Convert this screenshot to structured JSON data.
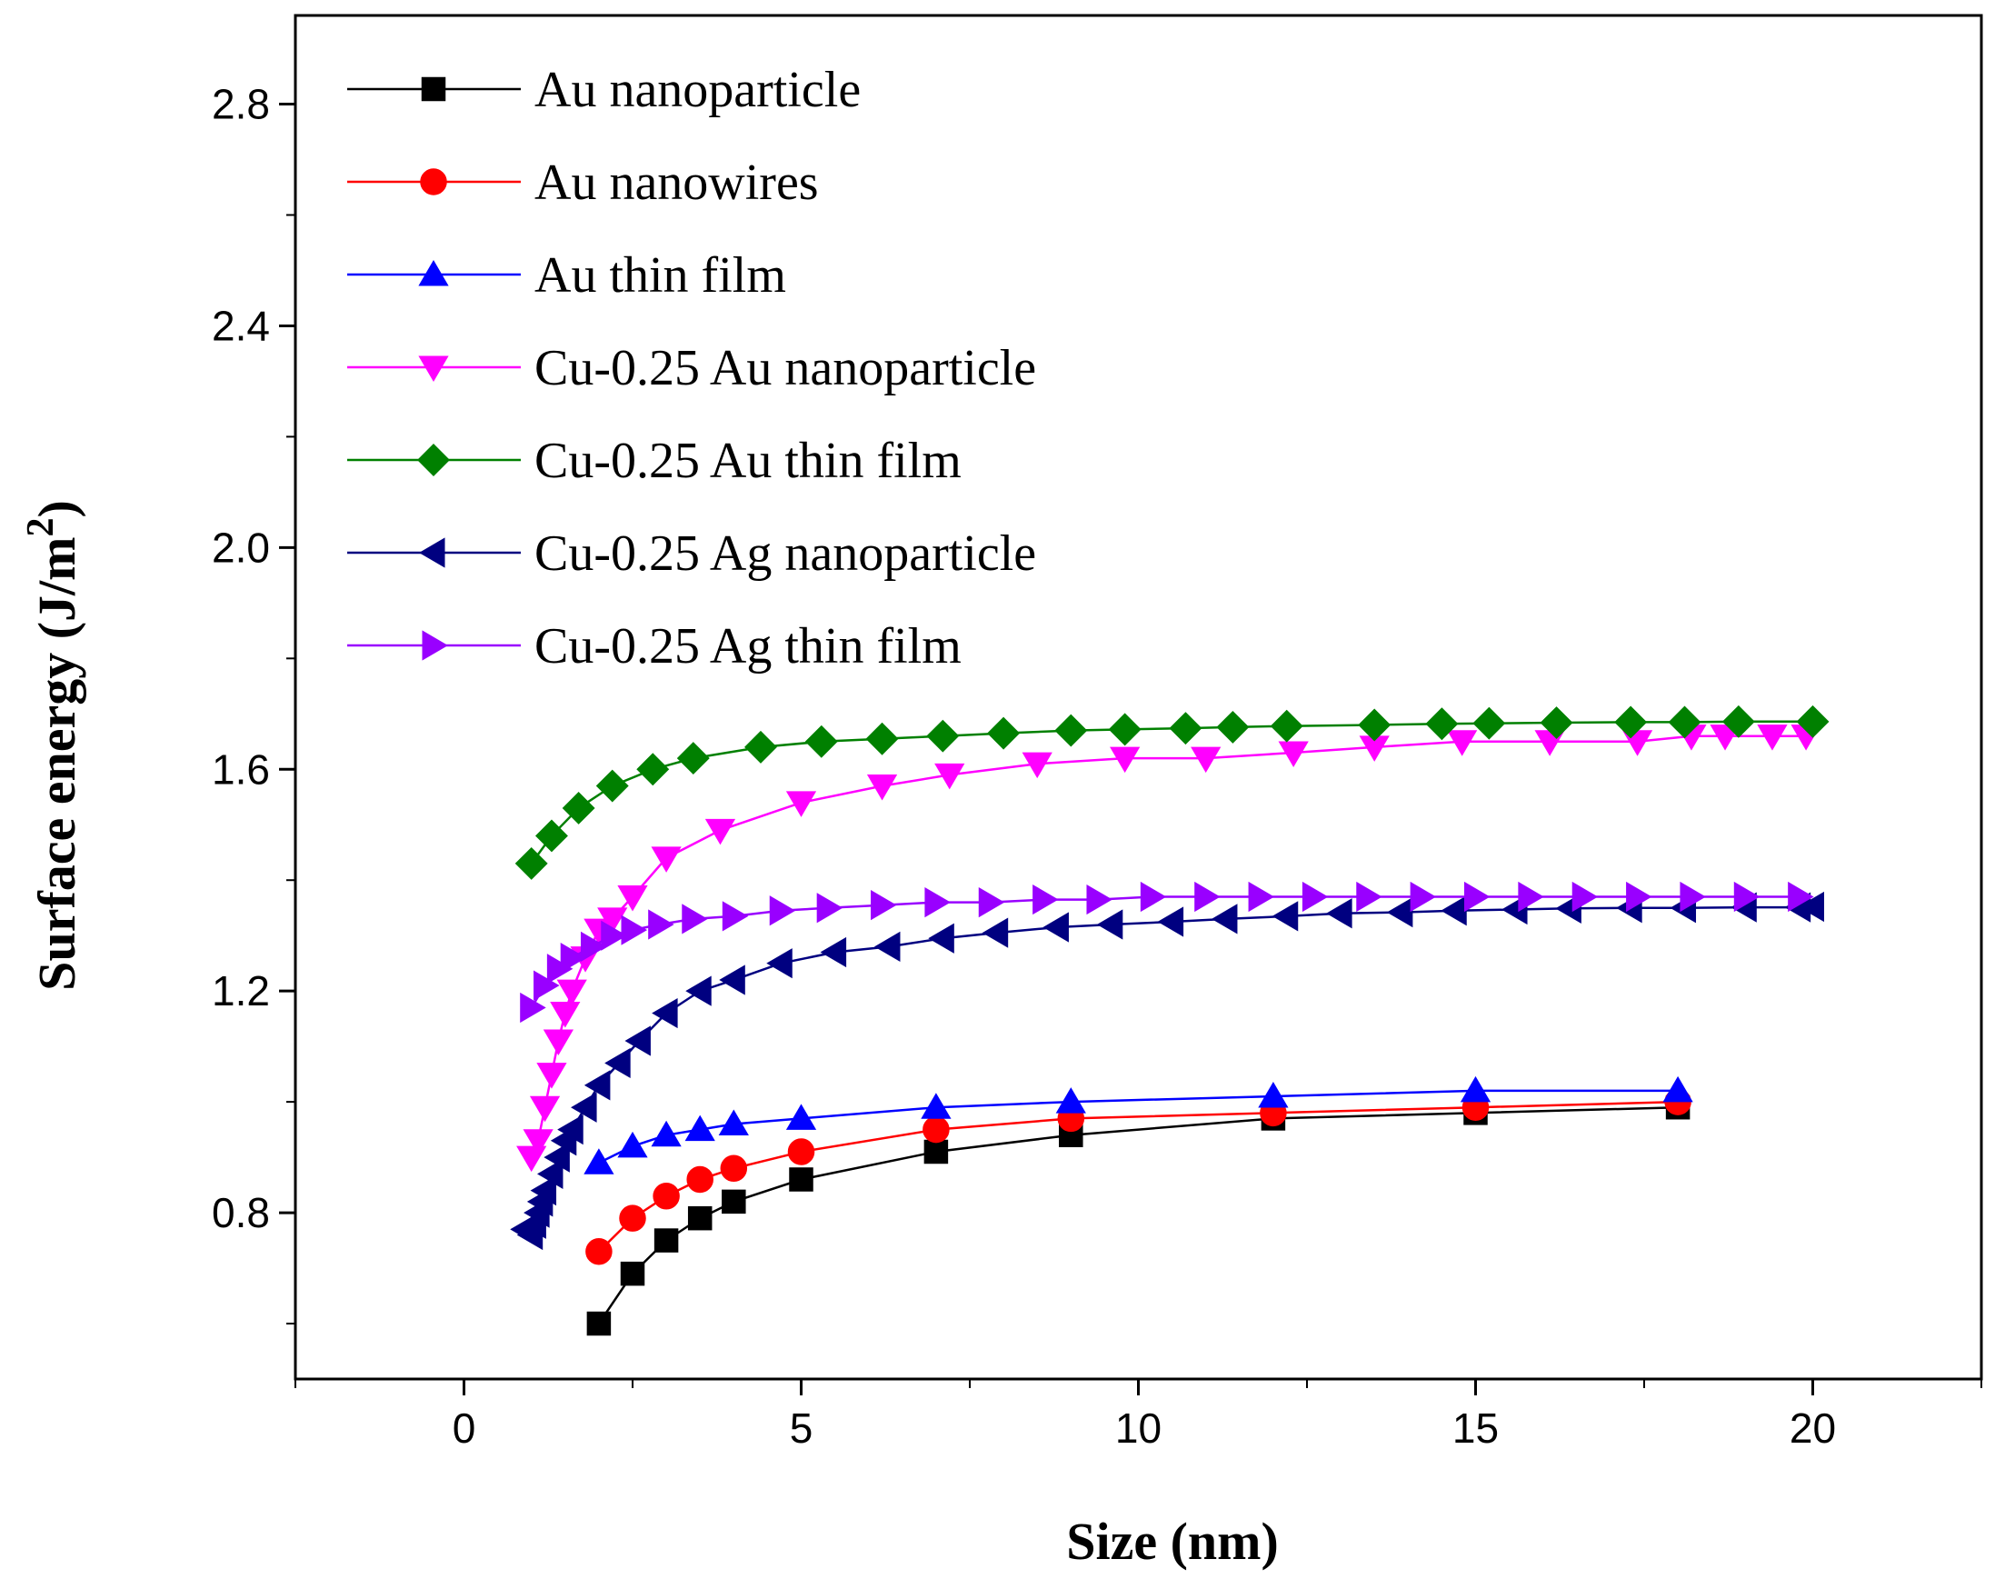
{
  "chart_data": {
    "type": "line",
    "title": "",
    "xlabel": "Size (nm)",
    "ylabel_main": "Surface energy (J/m",
    "ylabel_sup": "2",
    "ylabel_close": ")",
    "xlim": [
      -2.5,
      22.5
    ],
    "ylim": [
      0.5,
      2.96
    ],
    "xticks": [
      0,
      5,
      10,
      15,
      20
    ],
    "xtick_labels": [
      "0",
      "5",
      "10",
      "15",
      "20"
    ],
    "yticks": [
      0.8,
      1.2,
      1.6,
      2.0,
      2.4,
      2.8
    ],
    "ytick_labels": [
      "0.8",
      "1.2",
      "1.6",
      "2.0",
      "2.4",
      "2.8"
    ],
    "legend_position": "top-left",
    "series": [
      {
        "name": "Au nanoparticle",
        "color": "#000000",
        "marker": "square",
        "x": [
          2,
          2.5,
          3,
          3.5,
          4,
          5,
          7,
          9,
          12,
          15,
          18
        ],
        "y": [
          0.6,
          0.69,
          0.75,
          0.79,
          0.82,
          0.86,
          0.91,
          0.94,
          0.97,
          0.98,
          0.99
        ]
      },
      {
        "name": "Au nanowires",
        "color": "#ff0000",
        "marker": "circle",
        "x": [
          2,
          2.5,
          3,
          3.5,
          4,
          5,
          7,
          9,
          12,
          15,
          18
        ],
        "y": [
          0.73,
          0.79,
          0.83,
          0.86,
          0.88,
          0.91,
          0.95,
          0.97,
          0.98,
          0.99,
          1.0
        ]
      },
      {
        "name": "Au thin film",
        "color": "#0000ff",
        "marker": "triangle-up",
        "x": [
          2,
          2.5,
          3,
          3.5,
          4,
          5,
          7,
          9,
          12,
          15,
          18
        ],
        "y": [
          0.89,
          0.92,
          0.94,
          0.95,
          0.96,
          0.97,
          0.99,
          1.0,
          1.01,
          1.02,
          1.02
        ]
      },
      {
        "name": "Cu-0.25 Au nanoparticle",
        "color": "#ff00ff",
        "marker": "triangle-down",
        "x": [
          1.0,
          1.1,
          1.2,
          1.3,
          1.4,
          1.5,
          1.6,
          1.8,
          2.0,
          2.2,
          2.5,
          3.0,
          3.8,
          5.0,
          6.2,
          7.2,
          8.5,
          9.8,
          11.0,
          12.3,
          13.5,
          14.8,
          16.1,
          17.4,
          18.2,
          18.7,
          19.4,
          19.9
        ],
        "y": [
          0.9,
          0.93,
          0.99,
          1.05,
          1.11,
          1.16,
          1.2,
          1.26,
          1.31,
          1.33,
          1.37,
          1.44,
          1.49,
          1.54,
          1.57,
          1.59,
          1.61,
          1.62,
          1.62,
          1.63,
          1.64,
          1.65,
          1.65,
          1.65,
          1.66,
          1.66,
          1.66,
          1.66
        ]
      },
      {
        "name": "Cu-0.25 Au thin film",
        "color": "#008000",
        "marker": "diamond",
        "x": [
          1.0,
          1.3,
          1.7,
          2.2,
          2.8,
          3.4,
          4.4,
          5.3,
          6.2,
          7.1,
          8.0,
          9.0,
          9.8,
          10.7,
          11.4,
          12.2,
          13.5,
          14.5,
          15.2,
          16.2,
          17.3,
          18.1,
          18.9,
          20.0
        ],
        "y": [
          1.43,
          1.48,
          1.53,
          1.57,
          1.6,
          1.62,
          1.64,
          1.65,
          1.655,
          1.66,
          1.665,
          1.67,
          1.672,
          1.674,
          1.676,
          1.678,
          1.68,
          1.682,
          1.683,
          1.684,
          1.685,
          1.685,
          1.686,
          1.686
        ]
      },
      {
        "name": "Cu-0.25 Ag nanoparticle",
        "color": "#000080",
        "marker": "triangle-left",
        "x": [
          0.9,
          1.0,
          1.05,
          1.1,
          1.15,
          1.2,
          1.3,
          1.4,
          1.5,
          1.6,
          1.8,
          2.0,
          2.3,
          2.6,
          3.0,
          3.5,
          4.0,
          4.7,
          5.5,
          6.3,
          7.1,
          7.9,
          8.8,
          9.6,
          10.5,
          11.3,
          12.2,
          13.0,
          13.9,
          14.7,
          15.6,
          16.4,
          17.3,
          18.1,
          19.0,
          19.8,
          20.0
        ],
        "y": [
          0.77,
          0.76,
          0.78,
          0.8,
          0.82,
          0.84,
          0.87,
          0.9,
          0.93,
          0.95,
          0.99,
          1.03,
          1.07,
          1.11,
          1.16,
          1.2,
          1.22,
          1.25,
          1.27,
          1.28,
          1.295,
          1.305,
          1.315,
          1.32,
          1.325,
          1.33,
          1.335,
          1.34,
          1.342,
          1.345,
          1.347,
          1.349,
          1.35,
          1.35,
          1.351,
          1.351,
          1.352
        ]
      },
      {
        "name": "Cu-0.25 Ag thin film",
        "color": "#9900ff",
        "marker": "triangle-right",
        "x": [
          1.0,
          1.2,
          1.4,
          1.6,
          1.9,
          2.2,
          2.5,
          2.9,
          3.4,
          4.0,
          4.7,
          5.4,
          6.2,
          7.0,
          7.8,
          8.6,
          9.4,
          10.2,
          11.0,
          11.8,
          12.6,
          13.4,
          14.2,
          15.0,
          15.8,
          16.6,
          17.4,
          18.2,
          19.0,
          19.8
        ],
        "y": [
          1.17,
          1.21,
          1.24,
          1.26,
          1.28,
          1.3,
          1.31,
          1.32,
          1.33,
          1.335,
          1.345,
          1.35,
          1.355,
          1.36,
          1.36,
          1.365,
          1.365,
          1.37,
          1.37,
          1.37,
          1.37,
          1.37,
          1.37,
          1.37,
          1.37,
          1.37,
          1.37,
          1.37,
          1.37,
          1.37
        ]
      }
    ]
  }
}
